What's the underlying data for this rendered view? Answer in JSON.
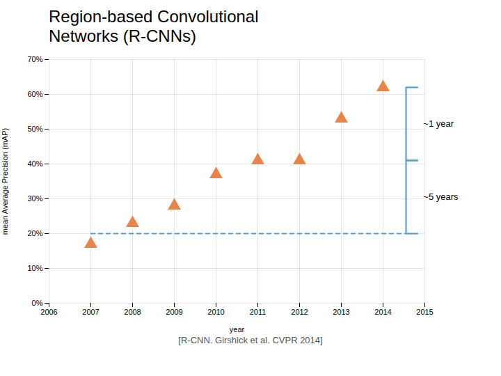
{
  "chart_data": {
    "type": "scatter",
    "title": "Region-based Convolutional\nNetworks (R-CNNs)",
    "caption": "[R-CNN. Girshick et al. CVPR 2014]",
    "x_label": "year",
    "y_label": "mean Average Precision (mAP)",
    "x": [
      2007,
      2008,
      2009,
      2010,
      2011,
      2012,
      2013,
      2014
    ],
    "values": [
      0.17,
      0.23,
      0.28,
      0.37,
      0.41,
      0.41,
      0.53,
      0.62
    ],
    "color": "#E8834A",
    "marker": "triangle",
    "xlim": [
      2006,
      2015
    ],
    "ylim": [
      0.0,
      0.7
    ],
    "xticks": [
      2006,
      2007,
      2008,
      2009,
      2010,
      2011,
      2012,
      2013,
      2014,
      2015
    ],
    "yticks": [
      {
        "value": 0.0,
        "label": "0%"
      },
      {
        "value": 0.1,
        "label": "10%"
      },
      {
        "value": 0.2,
        "label": "20%"
      },
      {
        "value": 0.3,
        "label": "30%"
      },
      {
        "value": 0.4,
        "label": "40%"
      },
      {
        "value": 0.5,
        "label": "50%"
      },
      {
        "value": 0.6,
        "label": "60%"
      },
      {
        "value": 0.7,
        "label": "70%"
      }
    ],
    "grid": true,
    "reference_line": {
      "y": 0.2,
      "x": [
        2007,
        2014.55
      ],
      "color": "#5B9BD5",
      "line_style": "dashed"
    },
    "annotations": [
      {
        "text": "~1 year",
        "x": 2014.55,
        "y": [
          0.62,
          0.41
        ],
        "color": "#5B9BD5"
      },
      {
        "text": "~5 years",
        "x": 2014.55,
        "y": [
          0.41,
          0.2
        ],
        "color": "#5B9BD5"
      }
    ]
  }
}
